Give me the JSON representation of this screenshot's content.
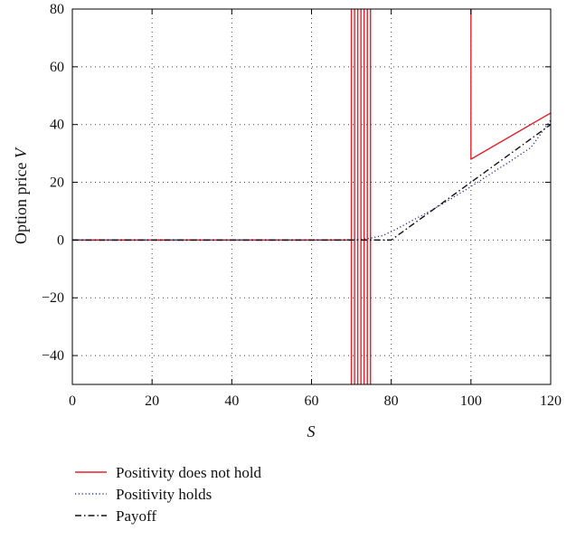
{
  "chart_data": {
    "type": "line",
    "title": "",
    "xlabel": "S",
    "ylabel_main": "Option price ",
    "ylabel_var": "V",
    "xlim": [
      0,
      120
    ],
    "ylim": [
      -50,
      80
    ],
    "xticks": [
      0,
      20,
      40,
      60,
      80,
      100,
      120
    ],
    "yticks": [
      -40,
      -20,
      0,
      20,
      40,
      60,
      80
    ],
    "xtick_labels": [
      "0",
      "20",
      "40",
      "60",
      "80",
      "100",
      "120"
    ],
    "ytick_labels": [
      "−40",
      "−20",
      "0",
      "20",
      "40",
      "60",
      "80"
    ],
    "grid": true,
    "legend_position": "below plot, left",
    "series": [
      {
        "name": "Positivity does not hold",
        "style": "solid",
        "color": "#e0232d",
        "segments": [
          [
            [
              0,
              0
            ],
            [
              69.8,
              0
            ]
          ],
          [
            [
              70.0,
              -50
            ],
            [
              70.0,
              80
            ]
          ],
          [
            [
              70.8,
              -50
            ],
            [
              70.8,
              80
            ]
          ],
          [
            [
              71.6,
              -50
            ],
            [
              71.6,
              80
            ]
          ],
          [
            [
              72.4,
              -50
            ],
            [
              72.4,
              80
            ]
          ],
          [
            [
              73.2,
              -50
            ],
            [
              73.2,
              80
            ]
          ],
          [
            [
              74.0,
              -50
            ],
            [
              74.0,
              80
            ]
          ],
          [
            [
              74.8,
              -50
            ],
            [
              74.8,
              80
            ]
          ],
          [
            [
              100,
              80
            ],
            [
              100,
              28
            ],
            [
              120,
              44
            ]
          ]
        ]
      },
      {
        "name": "Positivity holds",
        "style": "dotted",
        "color": "#2b3a9e",
        "segments": [
          [
            [
              0,
              0
            ],
            [
              60,
              0
            ],
            [
              70,
              0.1
            ],
            [
              74,
              0.4
            ],
            [
              78,
              1.6
            ],
            [
              82,
              4.3
            ],
            [
              86,
              7.3
            ],
            [
              90,
              10.2
            ],
            [
              95,
              14.3
            ],
            [
              100,
              18.5
            ],
            [
              105,
              23.0
            ],
            [
              110,
              27.4
            ],
            [
              115,
              32.0
            ],
            [
              120,
              41.5
            ]
          ]
        ]
      },
      {
        "name": "Payoff",
        "style": "dashdot",
        "color": "#111111",
        "segments": [
          [
            [
              0,
              0
            ],
            [
              80,
              0
            ],
            [
              120,
              40
            ]
          ]
        ]
      }
    ]
  }
}
